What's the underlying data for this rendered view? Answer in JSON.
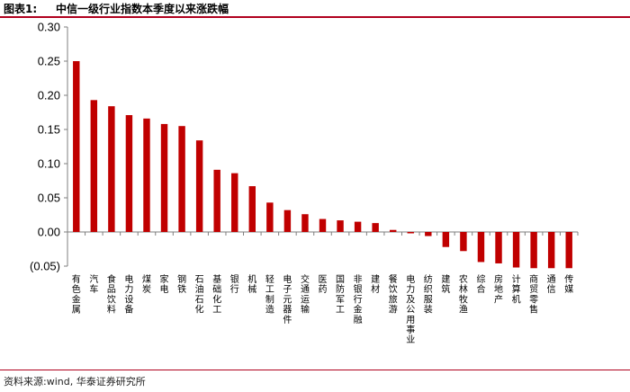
{
  "header": {
    "figure_label": "图表1:",
    "title": "中信一级行业指数本季度以来涨跌幅"
  },
  "footer": {
    "source": "资料来源:wind, 华泰证券研究所"
  },
  "colors": {
    "bar": "#C00000",
    "rule": "#B0001E",
    "axis": "#7F7F7F"
  },
  "chart_data": {
    "type": "bar",
    "title": "中信一级行业指数本季度以来涨跌幅",
    "xlabel": "",
    "ylabel": "",
    "ylim": [
      -0.05,
      0.3
    ],
    "yticks": [
      -0.05,
      0.0,
      0.05,
      0.1,
      0.15,
      0.2,
      0.25,
      0.3
    ],
    "ytick_labels": [
      "(0.05)",
      "0.00",
      "0.05",
      "0.10",
      "0.15",
      "0.20",
      "0.25",
      "0.30"
    ],
    "grid": false,
    "categories": [
      "有色金属",
      "汽车",
      "食品饮料",
      "电力设备",
      "煤炭",
      "家电",
      "钢铁",
      "石油石化",
      "基础化工",
      "银行",
      "机械",
      "轻工制造",
      "电子元器件",
      "交通运输",
      "医药",
      "国防军工",
      "非银行金融",
      "建材",
      "餐饮旅游",
      "电力及公用事业",
      "纺织服装",
      "建筑",
      "农林牧渔",
      "综合",
      "房地产",
      "计算机",
      "商贸零售",
      "通信",
      "传媒"
    ],
    "values": [
      0.25,
      0.193,
      0.184,
      0.171,
      0.166,
      0.158,
      0.155,
      0.134,
      0.091,
      0.086,
      0.067,
      0.043,
      0.032,
      0.026,
      0.019,
      0.017,
      0.015,
      0.013,
      0.003,
      -0.002,
      -0.006,
      -0.022,
      -0.028,
      -0.044,
      -0.046,
      -0.052,
      -0.053,
      -0.053,
      -0.053
    ]
  }
}
